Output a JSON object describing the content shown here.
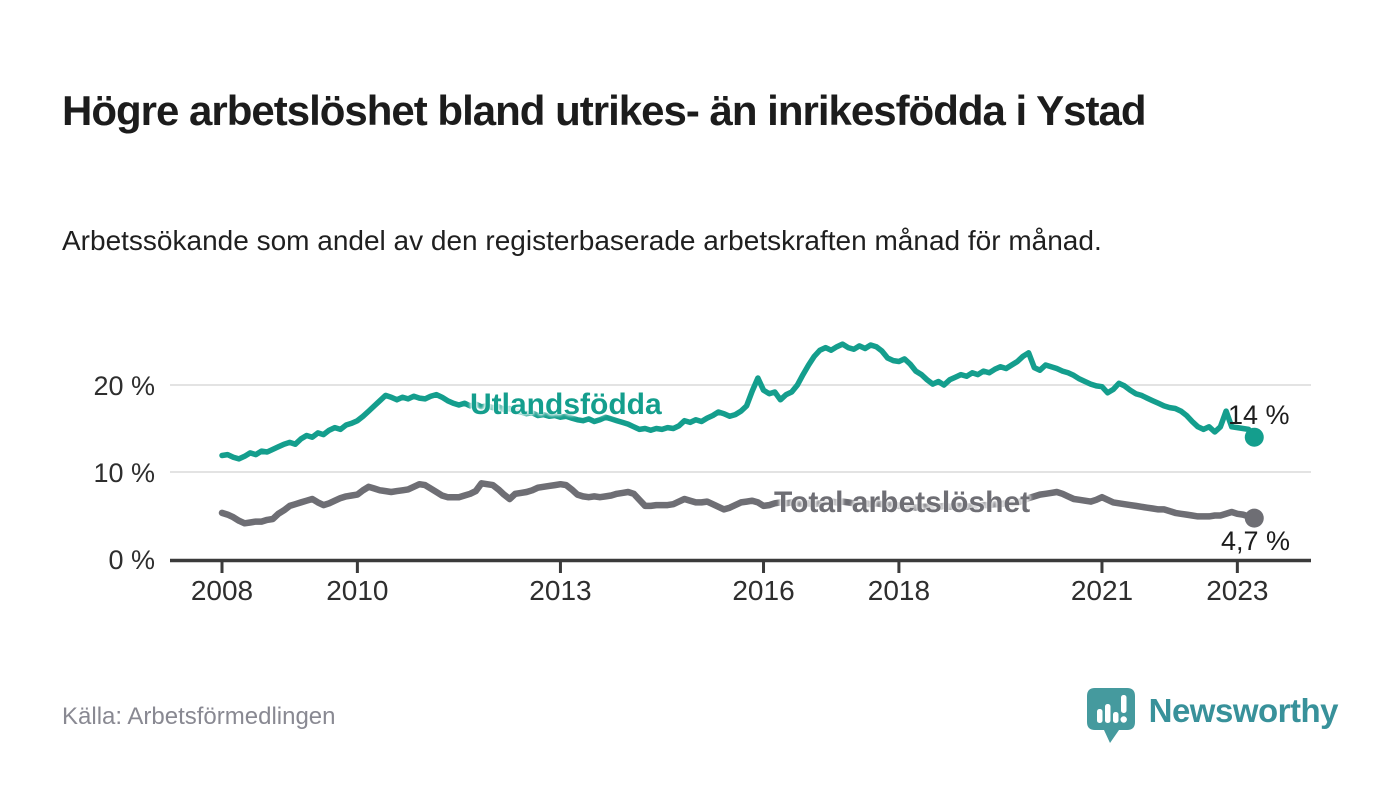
{
  "title": "Högre arbetslöshet bland utrikes- än inrikesfödda i Ystad",
  "subtitle": "Arbetssökande som andel av den registerbaserade arbetskraften månad för månad.",
  "source": "Källa: Arbetsförmedlingen",
  "brand": {
    "name": "Newsworthy",
    "mark_icon": "speech-bubble-bar-chart",
    "mark_color": "#459a9e",
    "text_color": "#38919a"
  },
  "colors": {
    "foreign_born_line": "#149e8d",
    "total_line": "#6e6e74",
    "grid": "#e3e3e3",
    "axis": "#3b3b3b",
    "tick_text": "#2e2e2e"
  },
  "chart_data": {
    "type": "line",
    "title": "Högre arbetslöshet bland utrikes- än inrikesfödda i Ystad",
    "subtitle": "Arbetssökande som andel av den registerbaserade arbetskraften månad för månad.",
    "x_start": {
      "year": 2008,
      "month": 1
    },
    "x_end": {
      "year": 2023,
      "month": 4
    },
    "x_frequency": "monthly",
    "x_tick_years": [
      2008,
      2010,
      2013,
      2016,
      2018,
      2021,
      2023
    ],
    "y_ticks": [
      {
        "label": "0 %",
        "value": 0
      },
      {
        "label": "10 %",
        "value": 10
      },
      {
        "label": "20 %",
        "value": 20
      }
    ],
    "y_gridlines": [
      10,
      20
    ],
    "ylim": [
      0,
      26
    ],
    "grid": "horizontal-only",
    "legend_position": "inline-labels",
    "series": [
      {
        "name": "Utlandsfödda",
        "color": "#149e8d",
        "stroke_width": 5.5,
        "end_label": "14 %",
        "end_value": 14,
        "values": [
          11.9,
          12.0,
          11.7,
          11.5,
          11.8,
          12.2,
          12.0,
          12.4,
          12.3,
          12.6,
          12.9,
          13.2,
          13.4,
          13.2,
          13.8,
          14.2,
          14.0,
          14.5,
          14.3,
          14.8,
          15.1,
          14.9,
          15.4,
          15.6,
          15.9,
          16.4,
          17.0,
          17.6,
          18.2,
          18.8,
          18.6,
          18.3,
          18.6,
          18.4,
          18.7,
          18.5,
          18.4,
          18.7,
          18.9,
          18.6,
          18.2,
          17.9,
          17.7,
          17.9,
          17.6,
          17.8,
          17.5,
          17.6,
          17.4,
          17.5,
          17.2,
          17.3,
          17.0,
          16.9,
          16.7,
          16.8,
          16.5,
          16.6,
          16.4,
          16.5,
          16.3,
          16.4,
          16.2,
          16.0,
          15.9,
          16.1,
          15.8,
          16.0,
          16.3,
          16.1,
          15.9,
          15.7,
          15.5,
          15.2,
          14.9,
          15.0,
          14.8,
          15.0,
          14.9,
          15.1,
          15.0,
          15.3,
          15.9,
          15.7,
          16.0,
          15.8,
          16.2,
          16.5,
          16.9,
          16.7,
          16.4,
          16.6,
          17.0,
          17.6,
          19.3,
          20.8,
          19.4,
          19.0,
          19.2,
          18.3,
          18.9,
          19.2,
          20.0,
          21.2,
          22.3,
          23.3,
          24.0,
          24.3,
          24.0,
          24.4,
          24.7,
          24.3,
          24.1,
          24.5,
          24.2,
          24.6,
          24.4,
          23.9,
          23.1,
          22.8,
          22.7,
          23.0,
          22.4,
          21.6,
          21.2,
          20.6,
          20.1,
          20.4,
          20.0,
          20.6,
          20.9,
          21.2,
          21.0,
          21.4,
          21.2,
          21.6,
          21.4,
          21.8,
          22.1,
          21.9,
          22.3,
          22.7,
          23.3,
          23.7,
          22.0,
          21.7,
          22.3,
          22.1,
          21.9,
          21.6,
          21.4,
          21.1,
          20.7,
          20.4,
          20.1,
          19.9,
          19.8,
          19.1,
          19.5,
          20.2,
          19.9,
          19.4,
          19.0,
          18.8,
          18.5,
          18.2,
          17.9,
          17.6,
          17.4,
          17.3,
          17.0,
          16.5,
          15.8,
          15.2,
          14.9,
          15.2,
          14.6,
          15.2,
          17.0,
          15.2,
          15.1,
          15.0,
          14.9,
          14.0
        ]
      },
      {
        "name": "Total arbetslöshet",
        "color": "#6e6e74",
        "stroke_width": 6.5,
        "end_label": "4,7 %",
        "end_value": 4.7,
        "values": [
          5.3,
          5.1,
          4.8,
          4.4,
          4.1,
          4.2,
          4.3,
          4.3,
          4.5,
          4.6,
          5.2,
          5.6,
          6.1,
          6.3,
          6.5,
          6.7,
          6.9,
          6.5,
          6.2,
          6.4,
          6.7,
          7.0,
          7.2,
          7.3,
          7.4,
          7.9,
          8.3,
          8.1,
          7.9,
          7.8,
          7.7,
          7.8,
          7.9,
          8.0,
          8.3,
          8.6,
          8.5,
          8.1,
          7.7,
          7.3,
          7.1,
          7.1,
          7.1,
          7.3,
          7.5,
          7.8,
          8.7,
          8.6,
          8.5,
          8.0,
          7.4,
          6.9,
          7.5,
          7.6,
          7.7,
          7.9,
          8.2,
          8.3,
          8.4,
          8.5,
          8.6,
          8.5,
          8.0,
          7.4,
          7.2,
          7.1,
          7.2,
          7.1,
          7.2,
          7.3,
          7.5,
          7.6,
          7.7,
          7.5,
          6.8,
          6.1,
          6.1,
          6.2,
          6.2,
          6.2,
          6.3,
          6.6,
          6.9,
          6.7,
          6.5,
          6.5,
          6.6,
          6.3,
          6.0,
          5.7,
          5.9,
          6.2,
          6.5,
          6.6,
          6.7,
          6.5,
          6.1,
          6.2,
          6.4,
          6.5,
          6.4,
          6.5,
          6.4,
          6.3,
          6.4,
          6.3,
          6.4,
          6.5,
          6.6,
          6.5,
          6.6,
          6.5,
          6.4,
          6.5,
          6.4,
          6.3,
          6.4,
          6.3,
          6.2,
          6.3,
          6.1,
          6.2,
          6.0,
          5.9,
          6.0,
          6.0,
          5.9,
          6.0,
          6.1,
          6.0,
          6.1,
          6.1,
          6.0,
          6.1,
          6.1,
          6.2,
          6.2,
          6.3,
          6.3,
          6.4,
          6.4,
          6.5,
          6.7,
          7.0,
          7.2,
          7.4,
          7.5,
          7.6,
          7.7,
          7.5,
          7.2,
          6.9,
          6.8,
          6.7,
          6.6,
          6.8,
          7.1,
          6.8,
          6.5,
          6.4,
          6.3,
          6.2,
          6.1,
          6.0,
          5.9,
          5.8,
          5.7,
          5.7,
          5.5,
          5.3,
          5.2,
          5.1,
          5.0,
          4.9,
          4.9,
          4.9,
          5.0,
          5.0,
          5.2,
          5.4,
          5.2,
          5.1,
          4.9,
          4.7
        ]
      }
    ]
  }
}
